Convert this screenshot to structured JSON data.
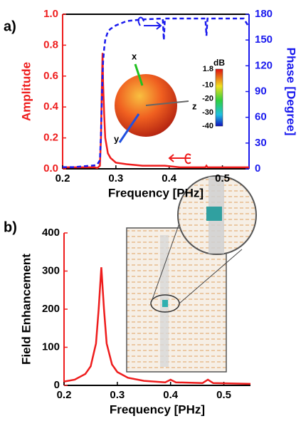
{
  "chart_data": [
    {
      "type": "line",
      "panel_label": "a)",
      "xlabel": "Frequency [PHz]",
      "ylabel": "Amplitude",
      "y2label": "Phase [Degree]",
      "x": [
        0.2,
        0.22,
        0.24,
        0.26,
        0.265,
        0.27,
        0.272,
        0.274,
        0.275,
        0.276,
        0.278,
        0.28,
        0.285,
        0.29,
        0.3,
        0.32,
        0.35,
        0.388,
        0.39,
        0.392,
        0.42,
        0.468,
        0.47,
        0.472,
        0.5,
        0.54,
        0.55
      ],
      "series": [
        {
          "color": "#ee1c1c",
          "dash": false,
          "values": [
            0.01,
            0.01,
            0.01,
            0.01,
            0.005,
            0.02,
            0.2,
            0.6,
            0.75,
            0.55,
            0.35,
            0.2,
            0.1,
            0.07,
            0.04,
            0.03,
            0.02,
            0.02,
            0.02,
            0.02,
            0.01,
            0.01,
            0.02,
            0.01,
            0.01,
            0.01,
            0.01
          ]
        },
        {
          "color": "#1a1aee",
          "dash": true,
          "axis": "y2",
          "values": [
            2,
            2,
            3,
            4,
            5,
            10,
            40,
            90,
            110,
            125,
            140,
            150,
            160,
            163,
            167,
            172,
            174,
            175,
            150,
            175,
            175,
            175,
            155,
            175,
            175,
            175,
            165
          ]
        }
      ],
      "xlim": [
        0.2,
        0.55
      ],
      "xticks": [
        0.2,
        0.3,
        0.4,
        0.5
      ],
      "ylim": [
        0,
        1
      ],
      "yticks": [
        {
          "value": 0,
          "label": "0.0"
        },
        0.2,
        0.4,
        0.6,
        0.8,
        {
          "value": 1,
          "label": "1.0"
        }
      ],
      "y2lim": [
        0,
        180
      ],
      "y2ticks": [
        0,
        30,
        60,
        90,
        120,
        150,
        180
      ],
      "inset_axes": [
        "x",
        "y",
        "z"
      ],
      "colorbar": {
        "title": "dB",
        "ticks": [
          1.8,
          -10,
          -20,
          -30,
          -40
        ]
      }
    },
    {
      "type": "line",
      "panel_label": "b)",
      "xlabel": "Frequency [PHz]",
      "ylabel": "Field Enhancement",
      "x": [
        0.2,
        0.22,
        0.24,
        0.25,
        0.26,
        0.265,
        0.27,
        0.275,
        0.28,
        0.29,
        0.3,
        0.32,
        0.35,
        0.39,
        0.4,
        0.41,
        0.46,
        0.47,
        0.48,
        0.55
      ],
      "series": [
        {
          "color": "#ee1c1c",
          "dash": false,
          "values": [
            10,
            15,
            30,
            50,
            110,
            200,
            310,
            200,
            110,
            55,
            35,
            20,
            12,
            8,
            15,
            8,
            6,
            15,
            6,
            4
          ]
        }
      ],
      "xlim": [
        0.2,
        0.55
      ],
      "xticks": [
        0.2,
        0.3,
        0.4,
        0.5
      ],
      "ylim": [
        0,
        400
      ],
      "yticks": [
        0,
        100,
        200,
        300,
        400
      ]
    }
  ]
}
